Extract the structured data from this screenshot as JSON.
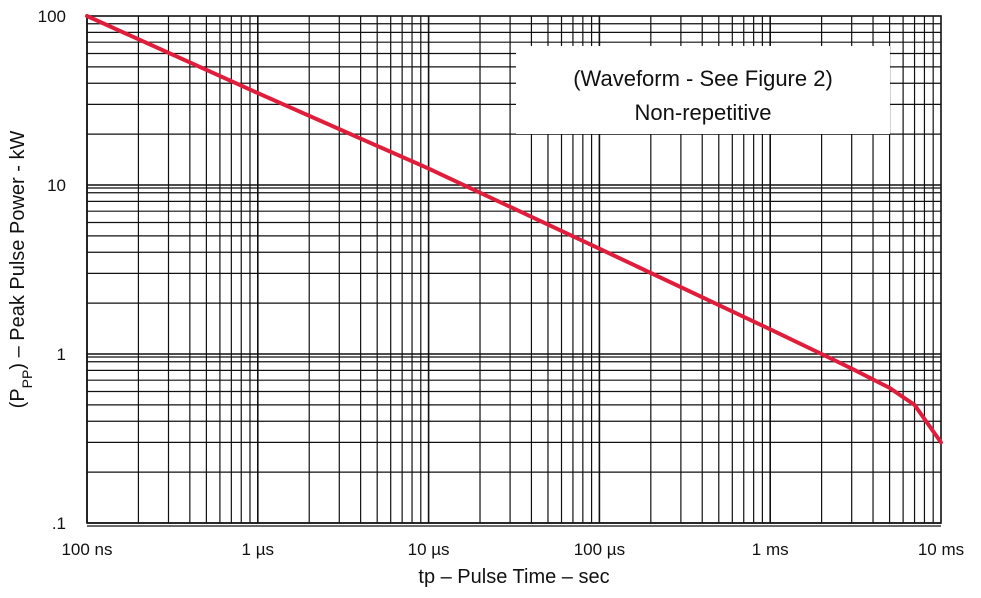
{
  "chart_data": {
    "type": "line",
    "title": "",
    "xlabel": "tp – Pulse Time – sec",
    "ylabel_parts": {
      "prefix": "(P",
      "subscript": "PP",
      "suffix": ") – Peak Pulse Power - kW"
    },
    "x_scale": "log",
    "y_scale": "log",
    "xlim": [
      1e-07,
      0.01
    ],
    "ylim": [
      0.1,
      100
    ],
    "grid": true,
    "x_ticks": [
      {
        "value": 1e-07,
        "label": "100 ns"
      },
      {
        "value": 1e-06,
        "label": "1 µs"
      },
      {
        "value": 1e-05,
        "label": "10 µs"
      },
      {
        "value": 0.0001,
        "label": "100 µs"
      },
      {
        "value": 0.001,
        "label": "1 ms"
      },
      {
        "value": 0.01,
        "label": "10 ms"
      }
    ],
    "y_ticks": [
      {
        "value": 100,
        "label": "100"
      },
      {
        "value": 10,
        "label": "10"
      },
      {
        "value": 1,
        "label": "1"
      },
      {
        "value": 0.1,
        "label": ".1"
      }
    ],
    "annotation": [
      "(Waveform - See Figure 2)",
      "Non-repetitive"
    ],
    "series": [
      {
        "color": "#e01e3c",
        "x": [
          1e-07,
          1e-06,
          1e-05,
          0.0001,
          0.001,
          0.002,
          0.003,
          0.005,
          0.007,
          0.01
        ],
        "y": [
          100,
          35,
          12.5,
          4.2,
          1.4,
          1.0,
          0.82,
          0.63,
          0.5,
          0.3
        ]
      }
    ]
  }
}
